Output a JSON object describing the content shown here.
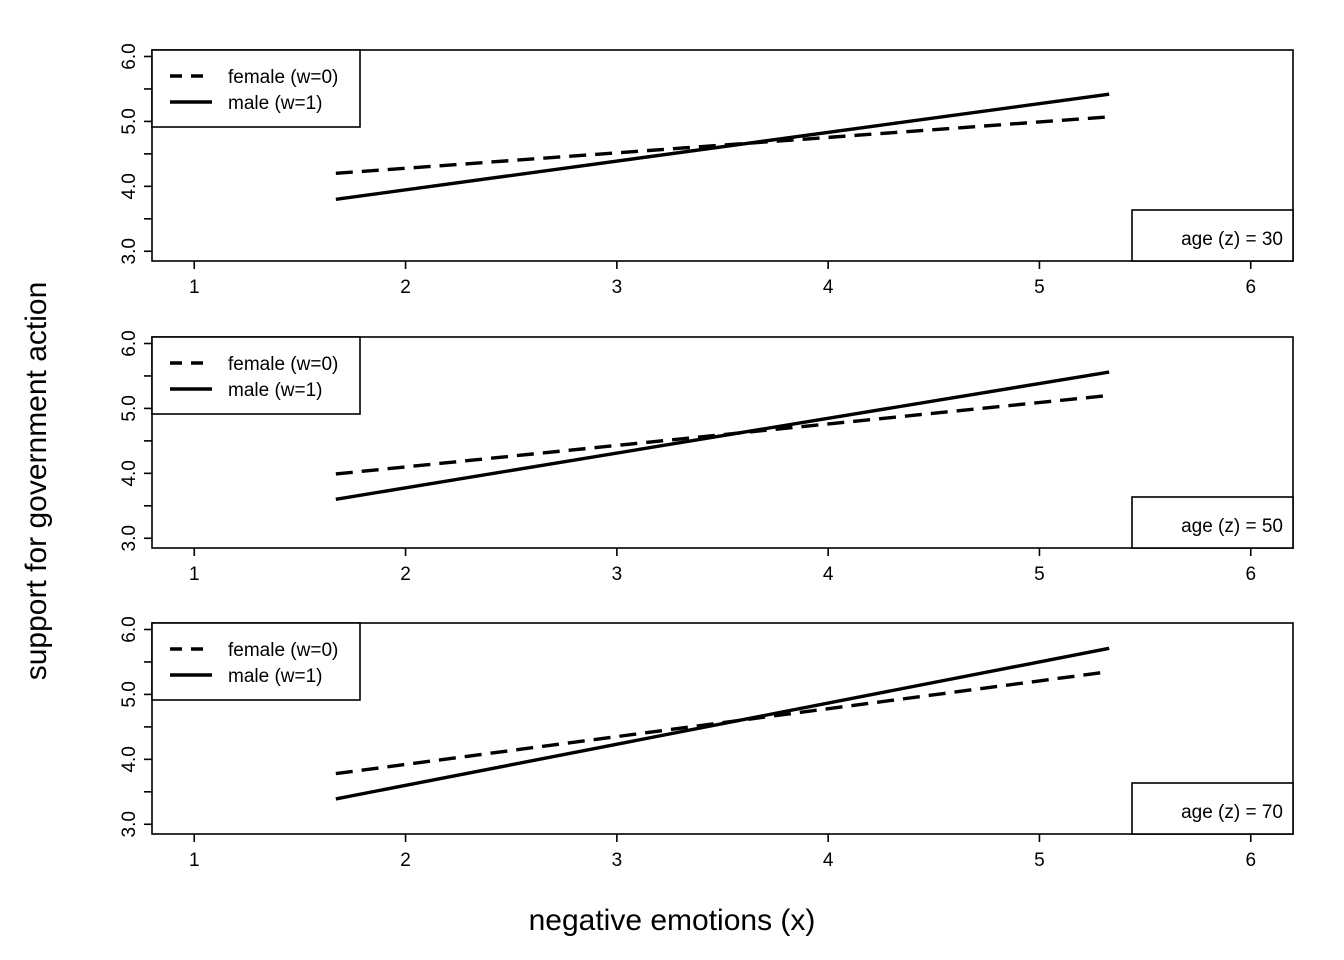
{
  "chart_data": {
    "type": "line",
    "xlabel": "negative emotions (x)",
    "ylabel": "support for government action",
    "xlim": [
      0.8,
      6.2
    ],
    "ylim": [
      2.85,
      6.1
    ],
    "xticks": [
      "1",
      "2",
      "3",
      "4",
      "5",
      "6"
    ],
    "yticks": [
      "3.0",
      "4.0",
      "5.0",
      "6.0"
    ],
    "legend_position": "top-left",
    "grid": false,
    "panels": [
      {
        "label": "age (z) = 30",
        "series": [
          {
            "name": "female (w=0)",
            "style": "dashed",
            "x": [
              1.67,
              5.33
            ],
            "y": [
              4.2,
              5.07
            ]
          },
          {
            "name": "male (w=1)",
            "style": "solid",
            "x": [
              1.67,
              5.33
            ],
            "y": [
              3.8,
              5.42
            ]
          }
        ]
      },
      {
        "label": "age (z) = 50",
        "series": [
          {
            "name": "female (w=0)",
            "style": "dashed",
            "x": [
              1.67,
              5.33
            ],
            "y": [
              3.99,
              5.2
            ]
          },
          {
            "name": "male (w=1)",
            "style": "solid",
            "x": [
              1.67,
              5.33
            ],
            "y": [
              3.6,
              5.56
            ]
          }
        ]
      },
      {
        "label": "age (z) = 70",
        "series": [
          {
            "name": "female (w=0)",
            "style": "dashed",
            "x": [
              1.67,
              5.33
            ],
            "y": [
              3.78,
              5.35
            ]
          },
          {
            "name": "male (w=1)",
            "style": "solid",
            "x": [
              1.67,
              5.33
            ],
            "y": [
              3.39,
              5.71
            ]
          }
        ]
      }
    ]
  }
}
